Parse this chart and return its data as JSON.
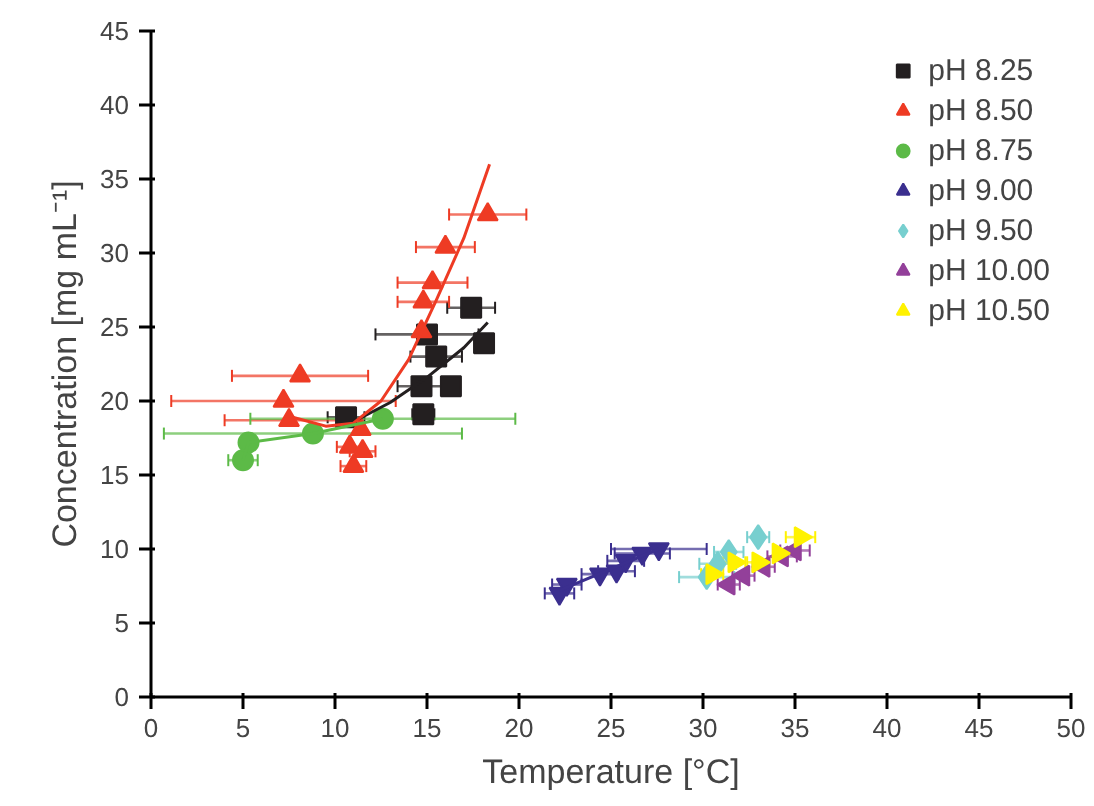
{
  "chart_data": {
    "type": "scatter",
    "xlabel": "Temperature [°C]",
    "ylabel": "Concentration [mg mL⁻¹]",
    "xlim": [
      0,
      50
    ],
    "ylim": [
      0,
      45
    ],
    "xticks": [
      0,
      5,
      10,
      15,
      20,
      25,
      30,
      35,
      40,
      45,
      50
    ],
    "yticks": [
      0,
      5,
      10,
      15,
      20,
      25,
      30,
      35,
      40,
      45
    ],
    "grid": false,
    "legend": "top right",
    "series": [
      {
        "name": "pH 8.25",
        "color": "#231f20",
        "marker": "square",
        "x": [
          17.4,
          15.0,
          18.1,
          15.5,
          14.7,
          16.3,
          10.6,
          14.8
        ],
        "values": [
          26.3,
          24.5,
          23.9,
          23.0,
          21.0,
          21.0,
          18.9,
          19.1
        ],
        "xerrors": [
          1.3,
          2.8,
          null,
          1.4,
          1.3,
          null,
          1.0,
          0.6
        ]
      },
      {
        "name": "pH 8.50",
        "color": "#ee3b24",
        "marker": "triangle",
        "x": [
          18.3,
          16.0,
          15.3,
          14.8,
          14.7,
          8.1,
          7.2,
          7.5,
          11.4,
          10.8,
          11.5,
          11.0
        ],
        "values": [
          32.6,
          30.4,
          28.0,
          26.7,
          24.7,
          21.7,
          20.0,
          18.7,
          18.1,
          16.9,
          16.6,
          15.6
        ],
        "xerrors": [
          2.1,
          1.6,
          1.9,
          1.4,
          null,
          3.7,
          6.1,
          3.5,
          null,
          0.7,
          0.7,
          0.7
        ]
      },
      {
        "name": "pH 8.75",
        "color": "#5cba47",
        "marker": "circle",
        "x": [
          12.6,
          8.8,
          5.3,
          5.0
        ],
        "values": [
          18.8,
          17.8,
          17.2,
          16.0
        ],
        "xerrors": [
          7.2,
          8.1,
          null,
          0.8
        ]
      },
      {
        "name": "pH 9.00",
        "color": "#3b2f8f",
        "marker": "triangle_down",
        "x": [
          22.2,
          22.6,
          24.4,
          25.3,
          25.8,
          26.7,
          27.6
        ],
        "values": [
          7.0,
          7.6,
          8.3,
          8.5,
          9.2,
          9.7,
          10.0
        ],
        "xerrors": [
          0.8,
          0.8,
          1.0,
          1.0,
          1.0,
          1.5,
          2.6
        ]
      },
      {
        "name": "pH 9.50",
        "color": "#77cfcf",
        "marker": "diamond",
        "x": [
          30.2,
          30.8,
          31.4,
          33.0
        ],
        "values": [
          8.1,
          9.0,
          9.8,
          10.8
        ],
        "xerrors": [
          1.5,
          1.0,
          0.8,
          0.6
        ]
      },
      {
        "name": "pH 10.00",
        "color": "#93409a",
        "marker": "triangle_left",
        "x": [
          31.4,
          32.2,
          33.3,
          34.3,
          35.0
        ],
        "values": [
          7.6,
          8.2,
          8.8,
          9.5,
          9.9
        ],
        "xerrors": [
          0.6,
          0.6,
          0.6,
          0.8,
          0.8
        ]
      },
      {
        "name": "pH 10.50",
        "color": "#fff200",
        "marker": "triangle_right",
        "x": [
          30.5,
          31.7,
          33.0,
          34.1,
          35.3
        ],
        "values": [
          8.3,
          9.1,
          9.1,
          9.7,
          10.8
        ],
        "xerrors": [
          0.6,
          0.6,
          0.6,
          null,
          0.8
        ]
      },
      {
        "type": "line",
        "color": "#231f20",
        "x": [
          11.0,
          13.0,
          15.0,
          17.0,
          18.3
        ],
        "values": [
          18.6,
          19.9,
          21.6,
          23.6,
          25.3
        ]
      },
      {
        "type": "line",
        "color": "#ee3b24",
        "x": [
          7.7,
          9.5,
          11.0,
          12.5,
          14.0,
          15.5,
          17.0,
          18.4
        ],
        "values": [
          18.9,
          18.3,
          18.5,
          20.0,
          22.8,
          26.8,
          31.0,
          36.0
        ]
      },
      {
        "type": "line",
        "color": "#5cba47",
        "x": [
          5.0,
          5.3,
          8.8,
          12.6
        ],
        "values": [
          16.0,
          17.2,
          17.8,
          18.8
        ]
      },
      {
        "type": "line",
        "color": "#3b2f8f",
        "x": [
          22.2,
          27.6
        ],
        "values": [
          7.2,
          10.0
        ]
      }
    ]
  }
}
